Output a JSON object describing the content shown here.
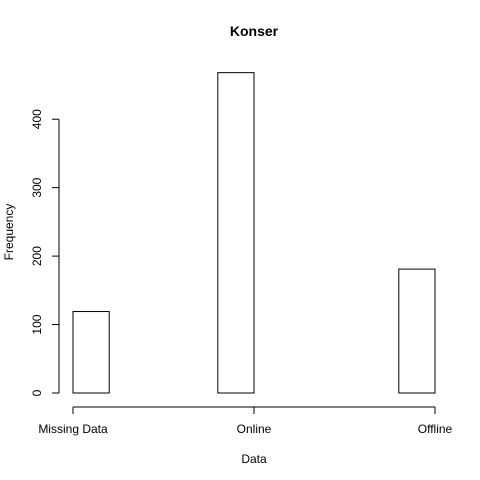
{
  "chart_data": {
    "type": "bar",
    "title": "Konser",
    "xlabel": "Data",
    "ylabel": "Frequency",
    "categories": [
      "Missing Data",
      "Online",
      "Offline"
    ],
    "values": [
      119,
      468,
      181
    ],
    "ylim": [
      0,
      480
    ],
    "yticks": [
      0,
      100,
      200,
      300,
      400
    ],
    "grid": false,
    "colors": {
      "bar_fill": "#ffffff",
      "bar_stroke": "#000000"
    }
  }
}
